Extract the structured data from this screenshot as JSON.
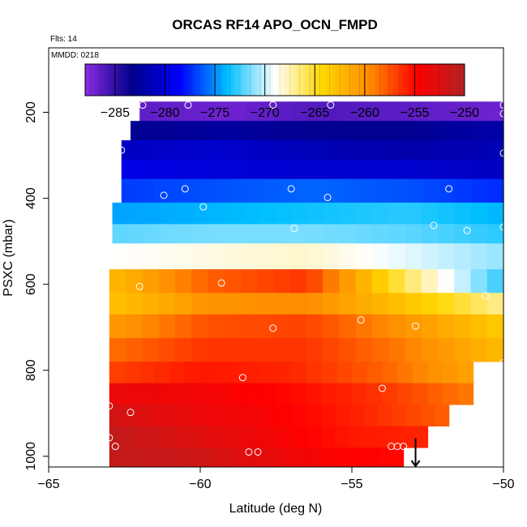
{
  "chart_data": {
    "type": "heatmap",
    "title": "ORCAS RF14 APO_OCN_FMPD",
    "flights_label": "Flts: 14",
    "date_label": "MMDD: 0218",
    "xlabel": "Latitude (deg N)",
    "ylabel": "PSXC (mbar)",
    "xlim": [
      -65,
      -50
    ],
    "ylim": [
      1025,
      50
    ],
    "y_reversed": true,
    "grid": false,
    "x_ticks": [
      -65,
      -60,
      -55,
      -50
    ],
    "y_ticks": [
      200,
      400,
      600,
      800,
      1000
    ],
    "colorbar": {
      "range": [
        -288,
        -250
      ],
      "ticks": [
        -285,
        -280,
        -275,
        -270,
        -265,
        -260,
        -255,
        -250
      ],
      "colors": [
        "#8a2be2",
        "#00008b",
        "#0000ff",
        "#00bfff",
        "#ffffff",
        "#ffd700",
        "#ff8c00",
        "#ff0000",
        "#b22222"
      ],
      "placement": "top"
    },
    "bands": [
      {
        "p_top": 175,
        "p_bot": 220,
        "lat_min": -62.0,
        "lat_max": -50,
        "values": [
          -286.5,
          -287,
          -286,
          -286.5,
          -287
        ]
      },
      {
        "p_top": 220,
        "p_bot": 265,
        "lat_min": -62.3,
        "lat_max": -50,
        "values": [
          -283,
          -282.5,
          -283,
          -283,
          -282
        ]
      },
      {
        "p_top": 265,
        "p_bot": 310,
        "lat_min": -62.6,
        "lat_max": -50,
        "values": [
          -281,
          -280.5,
          -281.5,
          -282,
          -281.5
        ]
      },
      {
        "p_top": 310,
        "p_bot": 355,
        "lat_min": -62.6,
        "lat_max": -50,
        "values": [
          -279.5,
          -280,
          -280.5,
          -280.5,
          -281
        ]
      },
      {
        "p_top": 355,
        "p_bot": 410,
        "lat_min": -62.6,
        "lat_max": -50,
        "values": [
          -277,
          -276.5,
          -276,
          -276.5,
          -277.5
        ]
      },
      {
        "p_top": 410,
        "p_bot": 460,
        "lat_min": -62.9,
        "lat_max": -50,
        "values": [
          -274.5,
          -274,
          -273.5,
          -273,
          -274
        ]
      },
      {
        "p_top": 460,
        "p_bot": 505,
        "lat_min": -62.9,
        "lat_max": -50,
        "values": [
          -272,
          -271.5,
          -271.5,
          -272,
          -273
        ]
      },
      {
        "p_top": 505,
        "p_bot": 565,
        "lat_min": -63.0,
        "lat_max": -50,
        "values": [
          -269,
          -268.5,
          -268,
          -269.5,
          -271
        ]
      },
      {
        "p_top": 565,
        "p_bot": 620,
        "lat_min": -63.0,
        "lat_max": -50,
        "values": [
          -262.5,
          -258,
          -256.5,
          -266,
          -273
        ]
      },
      {
        "p_top": 620,
        "p_bot": 670,
        "lat_min": -63.0,
        "lat_max": -50,
        "values": [
          -263,
          -260,
          -259.5,
          -263,
          -267
        ]
      },
      {
        "p_top": 670,
        "p_bot": 725,
        "lat_min": -63.0,
        "lat_max": -50,
        "values": [
          -260.5,
          -257.5,
          -257,
          -260,
          -263.5
        ]
      },
      {
        "p_top": 725,
        "p_bot": 780,
        "lat_min": -63.0,
        "lat_max": -50,
        "values": [
          -258.5,
          -256.5,
          -256.5,
          -259,
          -262.5
        ]
      },
      {
        "p_top": 780,
        "p_bot": 830,
        "lat_min": -63.0,
        "lat_max": -51.0,
        "values": [
          -257,
          -255.5,
          -256,
          -258,
          -261
        ]
      },
      {
        "p_top": 830,
        "p_bot": 880,
        "lat_min": -63.0,
        "lat_max": -51.0,
        "values": [
          -253.5,
          -254,
          -255,
          -256.5,
          -259
        ]
      },
      {
        "p_top": 880,
        "p_bot": 930,
        "lat_min": -63.0,
        "lat_max": -51.8,
        "values": [
          -252,
          -253.5,
          -254.5,
          -256,
          -258
        ]
      },
      {
        "p_top": 930,
        "p_bot": 980,
        "lat_min": -63.0,
        "lat_max": -52.5,
        "values": [
          -251,
          -252.5,
          -254,
          -255.5,
          -256
        ]
      },
      {
        "p_top": 980,
        "p_bot": 1025,
        "lat_min": -63.0,
        "lat_max": -53.3,
        "values": [
          -251,
          -251.5,
          -253,
          -254.5,
          -255
        ]
      }
    ],
    "points": [
      {
        "lat": -62.1,
        "p": 183
      },
      {
        "lat": -61.9,
        "p": 183
      },
      {
        "lat": -60.4,
        "p": 183
      },
      {
        "lat": -57.6,
        "p": 183
      },
      {
        "lat": -55.7,
        "p": 183
      },
      {
        "lat": -50.0,
        "p": 183
      },
      {
        "lat": -50.0,
        "p": 203
      },
      {
        "lat": -62.6,
        "p": 288
      },
      {
        "lat": -50.0,
        "p": 295
      },
      {
        "lat": -60.5,
        "p": 378
      },
      {
        "lat": -57.0,
        "p": 378
      },
      {
        "lat": -51.8,
        "p": 378
      },
      {
        "lat": -61.2,
        "p": 393
      },
      {
        "lat": -55.8,
        "p": 398
      },
      {
        "lat": -59.9,
        "p": 420
      },
      {
        "lat": -52.3,
        "p": 463
      },
      {
        "lat": -56.9,
        "p": 470
      },
      {
        "lat": -51.2,
        "p": 475
      },
      {
        "lat": -50.0,
        "p": 467
      },
      {
        "lat": -63.0,
        "p": 523
      },
      {
        "lat": -55.0,
        "p": 533
      },
      {
        "lat": -59.3,
        "p": 597
      },
      {
        "lat": -62.0,
        "p": 605
      },
      {
        "lat": -50.6,
        "p": 627
      },
      {
        "lat": -54.7,
        "p": 683
      },
      {
        "lat": -52.9,
        "p": 697
      },
      {
        "lat": -57.6,
        "p": 702
      },
      {
        "lat": -50.0,
        "p": 782
      },
      {
        "lat": -58.6,
        "p": 817
      },
      {
        "lat": -54.0,
        "p": 842
      },
      {
        "lat": -63.0,
        "p": 883
      },
      {
        "lat": -62.3,
        "p": 898
      },
      {
        "lat": -63.0,
        "p": 957
      },
      {
        "lat": -62.8,
        "p": 977
      },
      {
        "lat": -53.7,
        "p": 977
      },
      {
        "lat": -53.5,
        "p": 977
      },
      {
        "lat": -53.3,
        "p": 977
      },
      {
        "lat": -58.4,
        "p": 990
      },
      {
        "lat": -58.1,
        "p": 990
      }
    ],
    "arrow": {
      "lat": -52.9,
      "p_from": 958,
      "p_to": 1025
    }
  }
}
